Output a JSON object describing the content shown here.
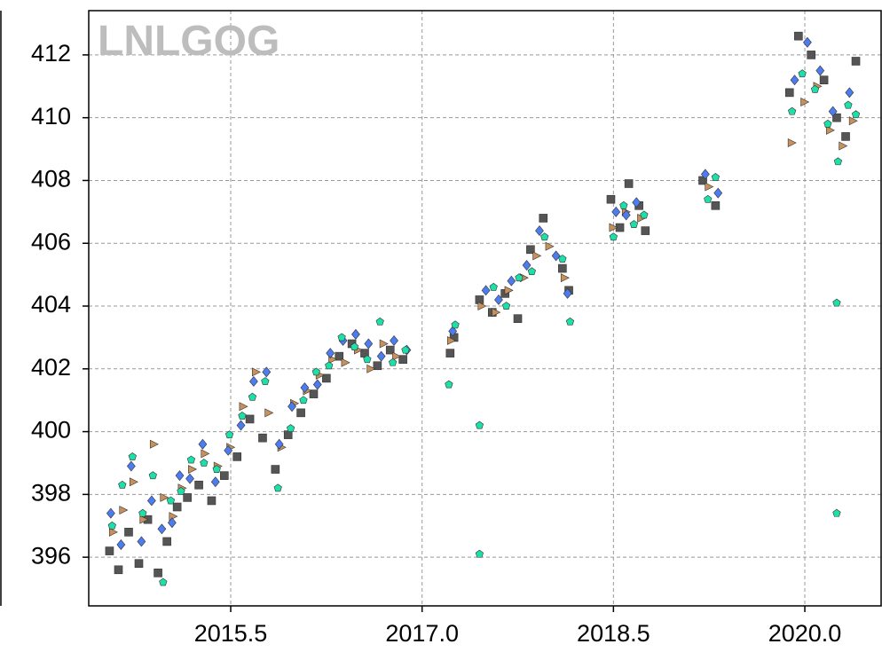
{
  "chart_data": {
    "type": "scatter",
    "title": "LNLGOG",
    "xlim": [
      2014.387,
      2020.598
    ],
    "ylim": [
      394.45,
      413.41
    ],
    "xticks": [
      2015.5,
      {
        "value": 2017.0,
        "label": "2017.0"
      },
      2018.5,
      {
        "value": 2020.0,
        "label": "2020.0"
      }
    ],
    "yticks": [
      396,
      398,
      400,
      402,
      404,
      406,
      408,
      410,
      412
    ],
    "grid": true,
    "series": [
      {
        "color": "#555555",
        "marker": "square",
        "x": [
          2014.55,
          2014.62,
          2014.7,
          2014.78,
          2014.85,
          2014.93,
          2015.0,
          2015.08,
          2015.16,
          2015.25,
          2015.35,
          2015.45,
          2015.55,
          2015.65,
          2015.75,
          2015.85,
          2015.95,
          2016.05,
          2016.15,
          2016.25,
          2016.35,
          2016.45,
          2016.55,
          2016.65,
          2016.75,
          2016.85,
          2017.22,
          2017.25,
          2017.45,
          2017.55,
          2017.65,
          2017.75,
          2017.85,
          2017.95,
          2018.1,
          2018.15,
          2018.48,
          2018.55,
          2018.62,
          2018.7,
          2018.75,
          2019.2,
          2019.3,
          2019.88,
          2019.95,
          2020.05,
          2020.15,
          2020.25,
          2020.32,
          2020.4
        ],
        "values": [
          396.2,
          395.6,
          396.8,
          395.8,
          397.2,
          395.5,
          396.5,
          397.6,
          397.9,
          398.3,
          397.8,
          398.6,
          399.2,
          400.4,
          399.8,
          398.8,
          399.9,
          400.6,
          401.2,
          401.7,
          402.4,
          402.8,
          402.5,
          402.1,
          402.6,
          402.3,
          402.5,
          403.0,
          404.2,
          403.8,
          404.4,
          403.6,
          405.8,
          406.8,
          405.2,
          404.5,
          407.4,
          406.5,
          407.9,
          407.2,
          406.4,
          408.0,
          407.2,
          410.8,
          412.6,
          412.0,
          411.2,
          410.0,
          409.4,
          411.8
        ]
      },
      {
        "color": "#c8905a",
        "marker": "triangle",
        "x": [
          2014.58,
          2014.66,
          2014.74,
          2014.82,
          2014.9,
          2014.98,
          2015.05,
          2015.12,
          2015.2,
          2015.3,
          2015.4,
          2015.5,
          2015.6,
          2015.7,
          2015.8,
          2015.9,
          2016.0,
          2016.1,
          2016.2,
          2016.3,
          2016.4,
          2016.5,
          2016.6,
          2016.7,
          2016.8,
          2017.23,
          2017.47,
          2017.58,
          2017.68,
          2017.8,
          2017.9,
          2018.0,
          2018.12,
          2018.5,
          2018.6,
          2018.72,
          2019.25,
          2019.9,
          2020.0,
          2020.1,
          2020.2,
          2020.3,
          2020.38
        ],
        "values": [
          396.8,
          397.5,
          398.4,
          397.2,
          399.6,
          397.9,
          397.3,
          398.2,
          398.8,
          399.3,
          398.9,
          399.5,
          400.8,
          401.9,
          400.6,
          399.5,
          400.9,
          401.3,
          401.8,
          402.3,
          402.2,
          402.6,
          402.0,
          402.8,
          402.4,
          402.9,
          404.0,
          403.8,
          404.5,
          404.9,
          405.6,
          405.9,
          404.9,
          406.5,
          407.0,
          406.8,
          407.8,
          409.2,
          410.5,
          411.0,
          409.6,
          409.1,
          409.9
        ]
      },
      {
        "color": "#4c7cf0",
        "marker": "diamond",
        "x": [
          2014.56,
          2014.64,
          2014.72,
          2014.8,
          2014.88,
          2014.96,
          2015.04,
          2015.1,
          2015.18,
          2015.28,
          2015.38,
          2015.48,
          2015.58,
          2015.68,
          2015.78,
          2015.88,
          2015.98,
          2016.08,
          2016.18,
          2016.28,
          2016.38,
          2016.48,
          2016.58,
          2016.68,
          2016.78,
          2016.88,
          2017.24,
          2017.5,
          2017.6,
          2017.7,
          2017.82,
          2017.92,
          2018.05,
          2018.14,
          2018.52,
          2018.6,
          2018.68,
          2019.22,
          2019.32,
          2019.92,
          2020.02,
          2020.12,
          2020.22,
          2020.35
        ],
        "values": [
          397.4,
          396.4,
          398.9,
          396.5,
          397.8,
          396.9,
          397.1,
          398.6,
          398.5,
          399.6,
          398.4,
          399.4,
          400.2,
          401.6,
          401.9,
          399.6,
          400.8,
          401.4,
          401.5,
          402.5,
          402.9,
          403.1,
          402.8,
          402.4,
          402.9,
          402.6,
          403.2,
          404.5,
          404.2,
          404.8,
          405.3,
          406.4,
          405.6,
          404.4,
          407.0,
          406.9,
          407.3,
          408.2,
          407.6,
          411.2,
          412.4,
          411.5,
          410.2,
          410.8
        ]
      },
      {
        "color": "#1de0a8",
        "marker": "pentagon",
        "x": [
          2014.57,
          2014.65,
          2014.73,
          2014.81,
          2014.89,
          2014.97,
          2015.03,
          2015.11,
          2015.19,
          2015.29,
          2015.39,
          2015.49,
          2015.59,
          2015.67,
          2015.77,
          2015.87,
          2015.97,
          2016.07,
          2016.17,
          2016.27,
          2016.37,
          2016.47,
          2016.57,
          2016.67,
          2016.77,
          2016.87,
          2017.21,
          2017.26,
          2017.45,
          2017.45,
          2017.56,
          2017.66,
          2017.76,
          2017.86,
          2017.96,
          2018.1,
          2018.16,
          2018.5,
          2018.58,
          2018.66,
          2018.74,
          2019.24,
          2019.3,
          2019.9,
          2019.98,
          2020.08,
          2020.18,
          2020.25,
          2020.25,
          2020.26,
          2020.34,
          2020.4
        ],
        "values": [
          397.0,
          398.3,
          399.2,
          397.4,
          398.6,
          395.2,
          397.8,
          398.1,
          399.1,
          399.0,
          398.8,
          399.9,
          400.5,
          401.1,
          401.6,
          398.2,
          400.1,
          401.0,
          401.9,
          402.1,
          403.0,
          402.7,
          402.3,
          403.5,
          402.2,
          402.6,
          401.5,
          403.4,
          400.2,
          396.1,
          404.6,
          404.0,
          404.9,
          405.1,
          406.2,
          405.5,
          403.5,
          406.2,
          407.2,
          406.6,
          406.9,
          407.4,
          408.1,
          410.2,
          411.4,
          410.9,
          409.8,
          404.1,
          397.4,
          408.6,
          410.4,
          410.1
        ]
      }
    ]
  }
}
